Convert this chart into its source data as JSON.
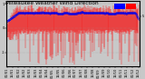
{
  "title": "Milwaukee Weather Wind Direction",
  "bg_color": "#c8c8c8",
  "plot_bg_color": "#c8c8c8",
  "bar_color": "#ff0000",
  "avg_color": "#0000ee",
  "n_points": 365,
  "seed": 7,
  "ylim_min": -1.55,
  "ylim_max": 1.1,
  "base_level": 0.65,
  "title_fontsize": 4.2,
  "tick_fontsize": 2.6,
  "grid_color": "#999999",
  "legend_blue": "#0000ff",
  "legend_red": "#ff0000"
}
